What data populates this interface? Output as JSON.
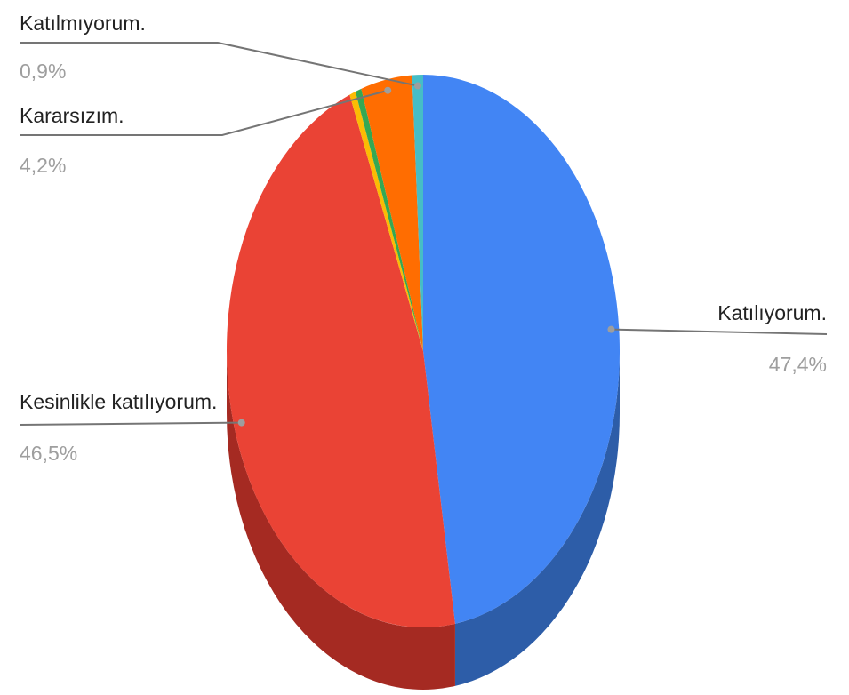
{
  "chart_data": {
    "type": "pie",
    "style": "3d",
    "slices": [
      {
        "label": "Katılıyorum.",
        "value": 47.4,
        "value_label": "47,4%",
        "color": "#4285f4",
        "side_color": "#2d5da8",
        "labeled": true
      },
      {
        "label": "Kesinlikle katılıyorum.",
        "value": 46.5,
        "value_label": "46,5%",
        "color": "#ea4335",
        "side_color": "#a52a22",
        "labeled": true
      },
      {
        "label": "",
        "value": 0.5,
        "value_label": "",
        "color": "#fbbc04",
        "side_color": "#b08503",
        "labeled": false
      },
      {
        "label": "",
        "value": 0.5,
        "value_label": "",
        "color": "#34a853",
        "side_color": "#247538",
        "labeled": false
      },
      {
        "label": "Kararsızım.",
        "value": 4.2,
        "value_label": "4,2%",
        "color": "#ff6d01",
        "side_color": "#b34c00",
        "labeled": true
      },
      {
        "label": "Katılmıyorum.",
        "value": 0.9,
        "value_label": "0,9%",
        "color": "#46bdc6",
        "side_color": "#2f868c",
        "labeled": true
      }
    ],
    "legend": "none"
  }
}
